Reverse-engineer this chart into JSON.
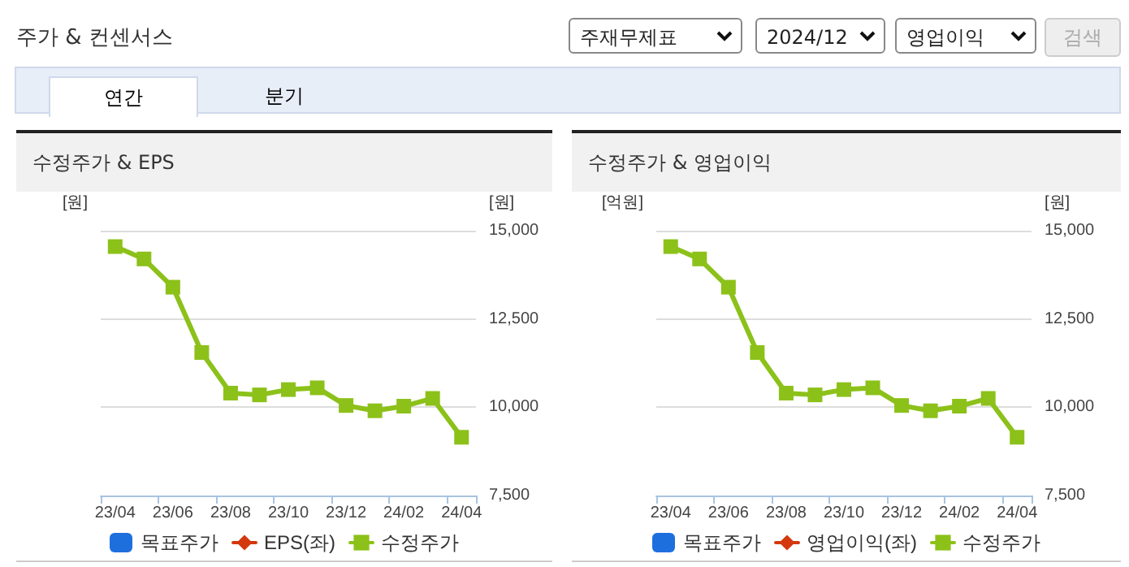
{
  "chart_data": [
    {
      "type": "line",
      "title": "수정주가 & EPS",
      "ylabel": "[원]",
      "y2label": "[원]",
      "annotations": [
        "주가 & 컨센서스",
        "주재무제표",
        "2024/12",
        "영업이익",
        "검색",
        "연간",
        "분기"
      ],
      "categories": [
        "23/04",
        null,
        "23/06",
        null,
        "23/08",
        null,
        "23/10",
        null,
        "23/12",
        null,
        "24/02",
        null,
        "24/04"
      ],
      "series": [
        {
          "name": "목표주가",
          "type": "bar",
          "color": "#1e6fde",
          "axis": "y2",
          "values": [
            null,
            null,
            null,
            null,
            null,
            null,
            null,
            null,
            null,
            null,
            null,
            null,
            null
          ]
        },
        {
          "name": "EPS(좌)",
          "marker": "diamond",
          "color": "#d4380d",
          "values": [
            null,
            null,
            null,
            null,
            null,
            null,
            null,
            null,
            null,
            null,
            null,
            null,
            null
          ]
        },
        {
          "name": "수정주가",
          "color": "#8cc11a",
          "axis": "y2",
          "values": [
            14550,
            14200,
            13400,
            11550,
            10400,
            10350,
            10500,
            10550,
            10050,
            9900,
            10030,
            10250,
            9150
          ]
        }
      ],
      "y2lim": [
        7500,
        15000
      ],
      "y2ticks": [
        {
          "value": 7500,
          "label": "7,500"
        },
        {
          "value": 10000,
          "label": "10,000"
        },
        {
          "value": 12500,
          "label": "12,500"
        },
        {
          "value": 15000,
          "label": "15,000"
        }
      ],
      "grid": "y",
      "legend": "bottom",
      "marker": "square",
      "line_style": "solid"
    },
    {
      "type": "line",
      "title": "수정주가 & 영업이익",
      "ylabel": "[억원]",
      "y2label": "[원]",
      "categories": [
        "23/04",
        null,
        "23/06",
        null,
        "23/08",
        null,
        "23/10",
        null,
        "23/12",
        null,
        "24/02",
        null,
        "24/04"
      ],
      "series": [
        {
          "name": "목표주가",
          "type": "bar",
          "color": "#1e6fde",
          "axis": "y2",
          "values": [
            null,
            null,
            null,
            null,
            null,
            null,
            null,
            null,
            null,
            null,
            null,
            null,
            null
          ]
        },
        {
          "name": "영업이익(좌)",
          "marker": "diamond",
          "color": "#d4380d",
          "values": [
            null,
            null,
            null,
            null,
            null,
            null,
            null,
            null,
            null,
            null,
            null,
            null,
            null
          ]
        },
        {
          "name": "수정주가",
          "color": "#8cc11a",
          "axis": "y2",
          "values": [
            14550,
            14200,
            13400,
            11550,
            10400,
            10350,
            10500,
            10550,
            10050,
            9900,
            10030,
            10250,
            9150
          ]
        }
      ],
      "y2lim": [
        7500,
        15000
      ],
      "y2ticks": [
        {
          "value": 7500,
          "label": "7,500"
        },
        {
          "value": 10000,
          "label": "10,000"
        },
        {
          "value": 12500,
          "label": "12,500"
        },
        {
          "value": 15000,
          "label": "15,000"
        }
      ],
      "grid": "y",
      "legend": "bottom",
      "marker": "square",
      "line_style": "solid"
    }
  ]
}
